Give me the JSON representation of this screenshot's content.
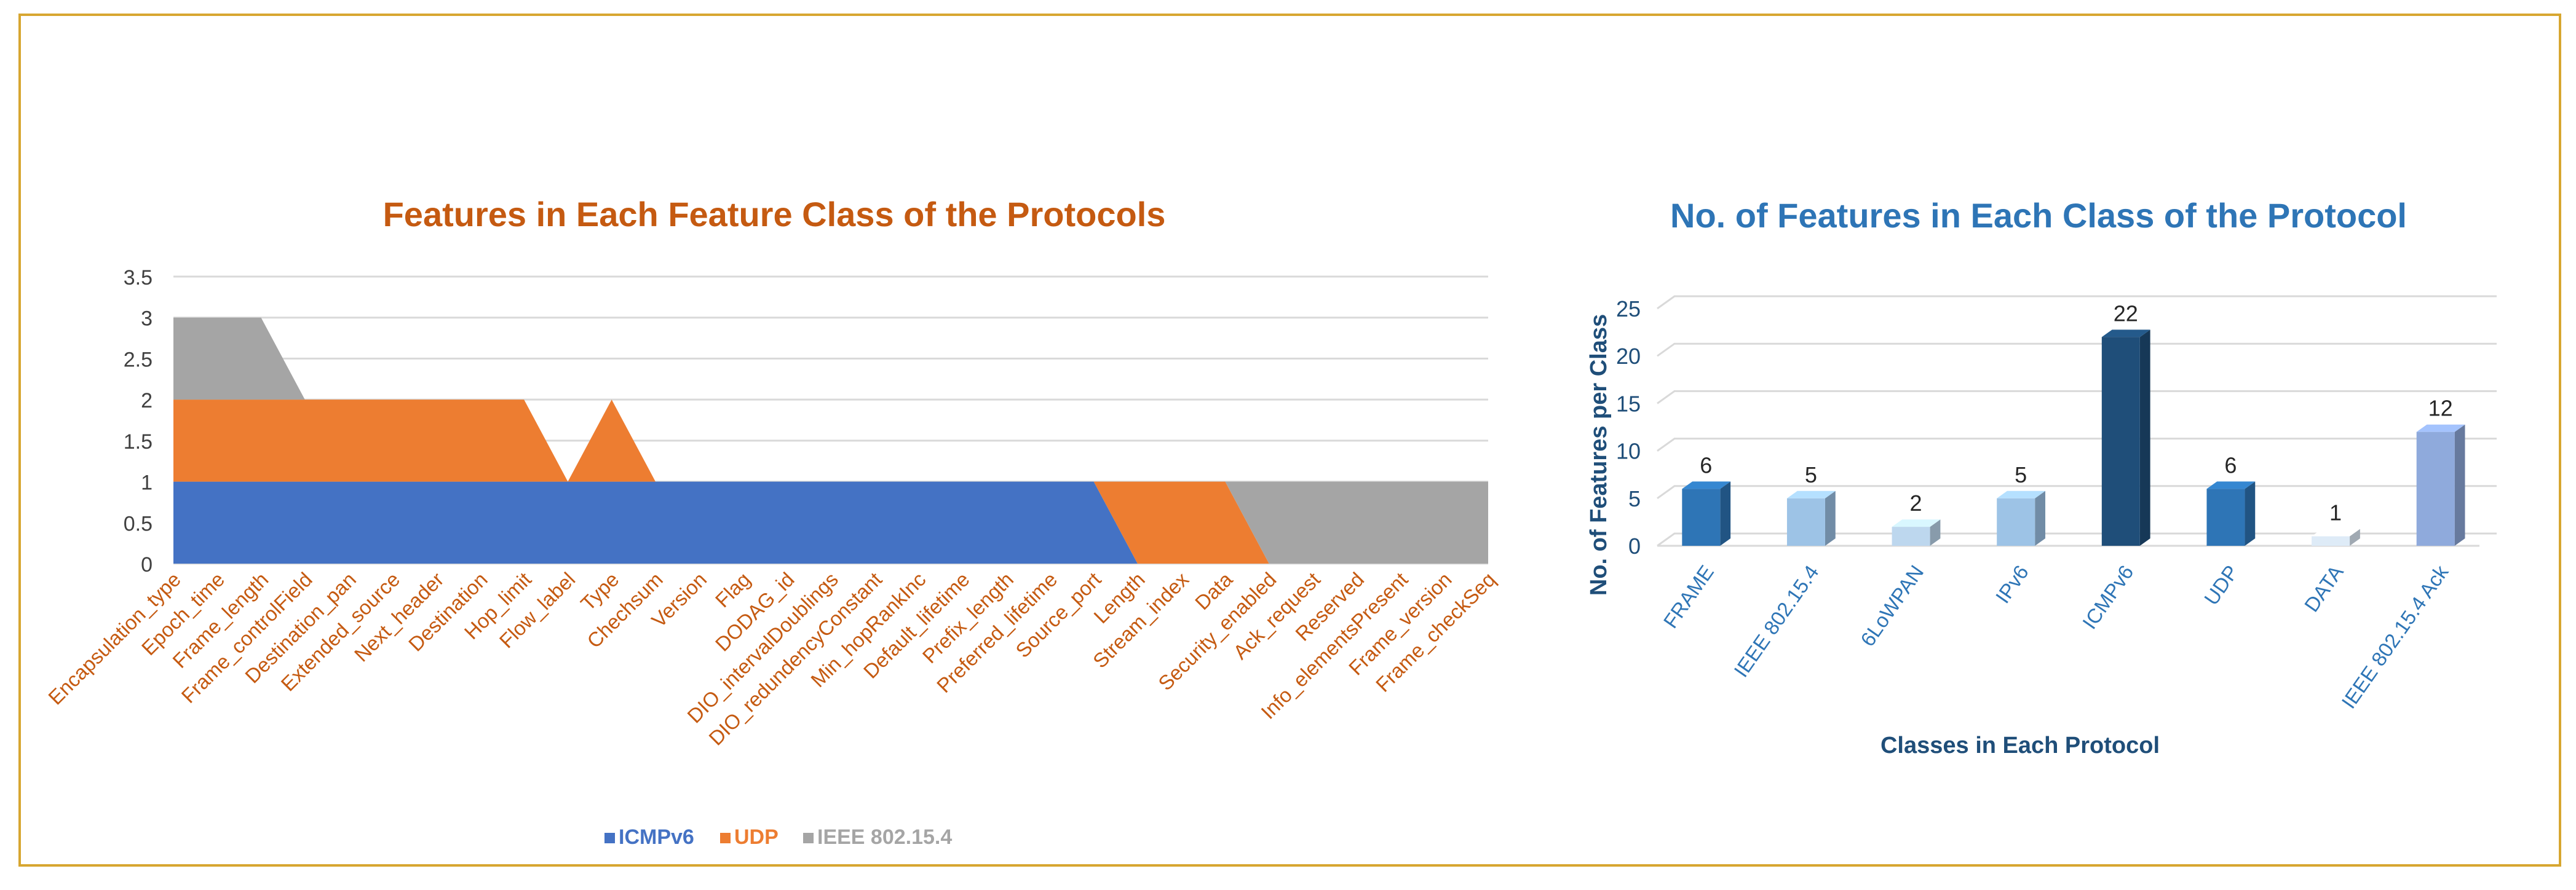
{
  "chart_data": [
    {
      "type": "area",
      "title": "Features in Each Feature Class of the Protocols",
      "categories": [
        "Encapsulation_type",
        "Epoch_time",
        "Frame_length",
        "Frame_controlField",
        "Destination_pan",
        "Extended_source",
        "Next_header",
        "Destination",
        "Hop_limit",
        "Flow_label",
        "Type",
        "Chechsum",
        "Version",
        "Flag",
        "DODAG_id",
        "DIO_intervalDoublings",
        "DIO_redundencyConstant",
        "Min_hopRankInc",
        "Default_lifetime",
        "Prefix_length",
        "Preferred_lifetime",
        "Source_port",
        "Length",
        "Stream_index",
        "Data",
        "Security_enabled",
        "Ack_request",
        "Reserved",
        "Info_elementsPresent",
        "Frame_version",
        "Frame_checkSeq"
      ],
      "series": [
        {
          "name": "ICMPv6",
          "values": [
            1,
            1,
            1,
            1,
            1,
            1,
            1,
            1,
            1,
            1,
            1,
            1,
            1,
            1,
            1,
            1,
            1,
            1,
            1,
            1,
            1,
            1,
            0,
            0,
            0,
            0,
            0,
            0,
            0,
            0,
            0
          ]
        },
        {
          "name": "UDP",
          "values": [
            1,
            1,
            1,
            1,
            1,
            1,
            1,
            1,
            1,
            0,
            1,
            0,
            0,
            0,
            0,
            0,
            0,
            0,
            0,
            0,
            0,
            0,
            1,
            1,
            1,
            0,
            0,
            0,
            0,
            0,
            0
          ]
        },
        {
          "name": "IEEE 802.15.4",
          "values": [
            1,
            1,
            1,
            0,
            0,
            0,
            0,
            0,
            0,
            0,
            0,
            0,
            0,
            0,
            0,
            0,
            0,
            0,
            0,
            0,
            0,
            0,
            0,
            0,
            0,
            1,
            1,
            1,
            1,
            1,
            1
          ]
        }
      ],
      "stacked": true,
      "yticks": [
        "0",
        "0.5",
        "1",
        "1.5",
        "2",
        "2.5",
        "3",
        "3.5"
      ],
      "ylim": [
        0,
        3.5
      ],
      "legend": "bottom",
      "colors": {
        "ICMPv6": "#4472c4",
        "UDP": "#ed7d31",
        "IEEE 802.15.4": "#a5a5a5",
        "title": "#c55a11",
        "labels": "#c55a11"
      }
    },
    {
      "type": "bar",
      "title": "No. of Features in Each Class of the Protocol",
      "xlabel": "Classes in Each Protocol",
      "ylabel": "No. of Features per Class",
      "categories": [
        "FRAME",
        "IEEE 802.15.4",
        "6LoWPAN",
        "IPv6",
        "ICMPv6",
        "UDP",
        "DATA",
        "IEEE 802.15.4 Ack"
      ],
      "values": [
        6,
        5,
        2,
        5,
        22,
        6,
        1,
        12
      ],
      "data_labels": [
        "6",
        "5",
        "2",
        "5",
        "22",
        "6",
        "1",
        "12"
      ],
      "yticks": [
        "0",
        "5",
        "10",
        "15",
        "20",
        "25"
      ],
      "ylim": [
        0,
        25
      ],
      "colors": {
        "bars": [
          "#2e75b6",
          "#9dc3e6",
          "#bdd7ee",
          "#9dc3e6",
          "#1f4e79",
          "#2e75b6",
          "#deebf7",
          "#8faadc"
        ],
        "title": "#2e75b6",
        "labels": "#1f4e79",
        "ticks": "#2e75b6"
      }
    }
  ]
}
